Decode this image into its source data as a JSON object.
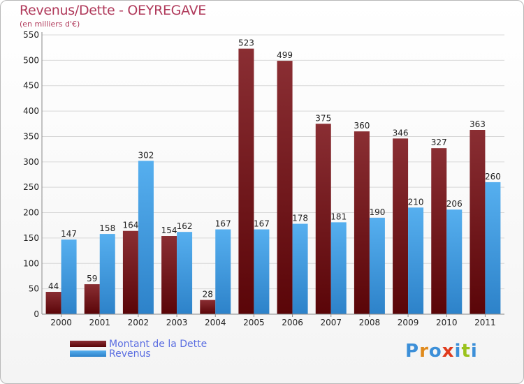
{
  "header": {
    "title": "Revenus/Dette - OEYREGAVE",
    "subtitle": "(en milliers d'€)"
  },
  "legend": {
    "items": [
      {
        "label": "Montant de la Dette",
        "color": "#6e0f14"
      },
      {
        "label": "Revenus",
        "color": "#3d9be6"
      }
    ]
  },
  "logo": {
    "letters": [
      "P",
      "r",
      "o",
      "x",
      "i",
      "t",
      "i"
    ],
    "colors": [
      "#3c8fd8",
      "#e08a1c",
      "#3c8fd8",
      "#e03a1c",
      "#3c8fd8",
      "#9ac21c",
      "#3c8fd8"
    ]
  },
  "chart_data": {
    "type": "bar",
    "categories": [
      "2000",
      "2001",
      "2002",
      "2003",
      "2004",
      "2005",
      "2006",
      "2007",
      "2008",
      "2009",
      "2010",
      "2011"
    ],
    "series": [
      {
        "name": "Montant de la Dette",
        "color": "#6e0f14",
        "values": [
          44,
          59,
          164,
          154,
          28,
          523,
          499,
          375,
          360,
          346,
          327,
          363
        ]
      },
      {
        "name": "Revenus",
        "color": "#3d9be6",
        "values": [
          147,
          158,
          302,
          162,
          167,
          167,
          178,
          181,
          190,
          210,
          206,
          260
        ]
      }
    ],
    "ylim": [
      0,
      550
    ],
    "yticks": [
      0,
      50,
      100,
      150,
      200,
      250,
      300,
      350,
      400,
      450,
      500,
      550
    ],
    "grid": true,
    "legend_position": "bottom-left"
  }
}
